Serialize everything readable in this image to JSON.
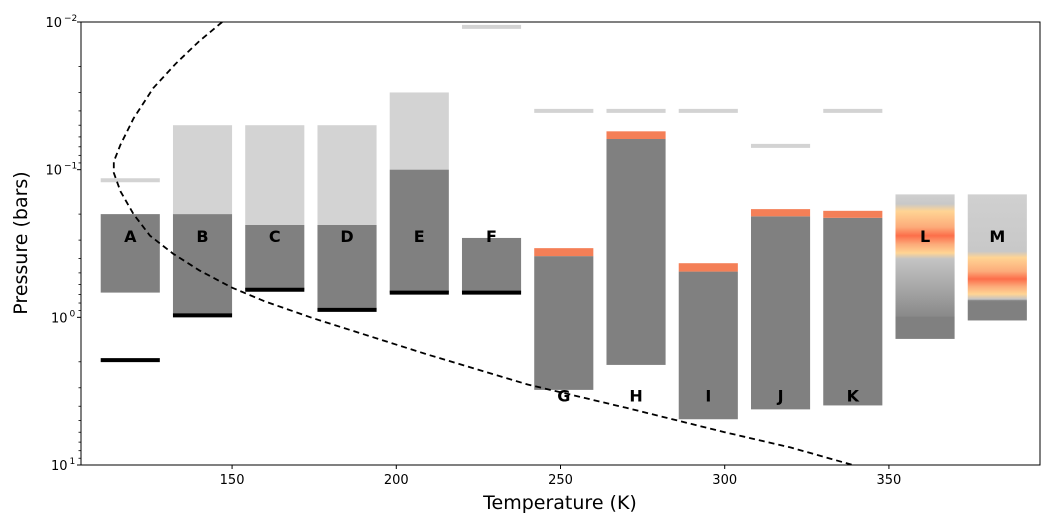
{
  "chart_data": {
    "type": "bar",
    "xlabel": "Temperature (K)",
    "ylabel": "Pressure (bars)",
    "xlim": [
      104,
      396
    ],
    "ylim": [
      10,
      0.01
    ],
    "yscale": "log",
    "x_ticks": [
      {
        "value": 150,
        "label": "150"
      },
      {
        "value": 200,
        "label": "200"
      },
      {
        "value": 250,
        "label": "250"
      },
      {
        "value": 300,
        "label": "300"
      },
      {
        "value": 350,
        "label": "350"
      }
    ],
    "y_ticks": [
      {
        "value": 0.01,
        "base": "10",
        "exp": "−2"
      },
      {
        "value": 0.1,
        "base": "10",
        "exp": "−1"
      },
      {
        "value": 1,
        "base": "10",
        "exp": "0"
      },
      {
        "value": 10,
        "base": "10",
        "exp": "1"
      }
    ],
    "colors": {
      "dark_bar": "#808080",
      "light_bar": "#d3d3d3",
      "hot_layer": "#f47f57",
      "gradient_core": "#fc6e4a",
      "gradient_edge": "#ffd494",
      "marker": "#000000",
      "curve": "#000000"
    },
    "bars": [
      {
        "label": "A",
        "x0": 110,
        "x1": 128,
        "label_p": 0.5,
        "light": null,
        "dark": [
          0.2,
          0.68
        ],
        "hot": null,
        "top_mark": 0.118,
        "bottom_mark": 1.95
      },
      {
        "label": "B",
        "x0": 132,
        "x1": 150,
        "label_p": 0.5,
        "light": [
          0.05,
          0.2
        ],
        "dark": [
          0.2,
          0.97
        ],
        "hot": null,
        "top_mark": null,
        "bottom_mark": 0.97
      },
      {
        "label": "C",
        "x0": 154,
        "x1": 172,
        "label_p": 0.5,
        "light": [
          0.05,
          0.237
        ],
        "dark": [
          0.237,
          0.65
        ],
        "hot": null,
        "top_mark": null,
        "bottom_mark": 0.65
      },
      {
        "label": "D",
        "x0": 176,
        "x1": 194,
        "label_p": 0.5,
        "light": [
          0.05,
          0.237
        ],
        "dark": [
          0.237,
          0.89
        ],
        "hot": null,
        "top_mark": null,
        "bottom_mark": 0.89
      },
      {
        "label": "E",
        "x0": 198,
        "x1": 216,
        "label_p": 0.5,
        "light": [
          0.03,
          0.1
        ],
        "dark": [
          0.1,
          0.68
        ],
        "hot": null,
        "top_mark": null,
        "bottom_mark": 0.68
      },
      {
        "label": "F",
        "x0": 220,
        "x1": 238,
        "label_p": 0.5,
        "light": null,
        "dark": [
          0.29,
          0.68
        ],
        "hot": null,
        "top_mark": 0.0108,
        "bottom_mark": 0.68
      },
      {
        "label": "G",
        "x0": 242,
        "x1": 260,
        "label_p": 0.86,
        "light": null,
        "dark": [
          0.385,
          3.1
        ],
        "hot": [
          0.34,
          0.385
        ],
        "top_mark": 0.04,
        "bottom_mark": null
      },
      {
        "label": "H",
        "x0": 264,
        "x1": 282,
        "label_p": 0.86,
        "light": null,
        "dark": [
          0.062,
          2.1
        ],
        "hot": [
          0.055,
          0.062
        ],
        "top_mark": 0.04,
        "bottom_mark": null
      },
      {
        "label": "I",
        "x0": 286,
        "x1": 304,
        "label_p": 0.86,
        "light": null,
        "dark": [
          0.49,
          4.9
        ],
        "hot": [
          0.43,
          0.49
        ],
        "top_mark": 0.04,
        "bottom_mark": null
      },
      {
        "label": "J",
        "x0": 308,
        "x1": 326,
        "label_p": 0.86,
        "light": null,
        "dark": [
          0.207,
          4.2
        ],
        "hot": [
          0.185,
          0.207
        ],
        "top_mark": 0.069,
        "bottom_mark": null
      },
      {
        "label": "K",
        "x0": 330,
        "x1": 348,
        "label_p": 0.86,
        "light": null,
        "dark": [
          0.212,
          3.95
        ],
        "hot": [
          0.19,
          0.212
        ],
        "top_mark": 0.04,
        "bottom_mark": null
      },
      {
        "label": "L",
        "x0": 352,
        "x1": 370,
        "label_p": 0.5,
        "gradient": {
          "top": 0.147,
          "bottom": 1.4,
          "glow_center": 0.28,
          "dark_below": 1.0
        }
      },
      {
        "label": "M",
        "x0": 374,
        "x1": 392,
        "label_p": 0.5,
        "gradient": {
          "top": 0.147,
          "bottom": 1.05,
          "glow_center": 0.55,
          "dark_below": 0.69
        }
      }
    ],
    "curve": {
      "style": "dashed",
      "points": [
        [
          147,
          0.01
        ],
        [
          140,
          0.0135
        ],
        [
          133,
          0.019
        ],
        [
          126,
          0.028
        ],
        [
          120,
          0.045
        ],
        [
          116,
          0.068
        ],
        [
          114,
          0.088
        ],
        [
          114,
          0.105
        ],
        [
          116,
          0.14
        ],
        [
          120,
          0.2
        ],
        [
          125,
          0.28
        ],
        [
          132,
          0.37
        ],
        [
          140,
          0.48
        ],
        [
          150,
          0.63
        ],
        [
          160,
          0.78
        ],
        [
          175,
          1.02
        ],
        [
          190,
          1.3
        ],
        [
          210,
          1.8
        ],
        [
          240,
          2.85
        ],
        [
          270,
          4.1
        ],
        [
          300,
          6.0
        ],
        [
          320,
          7.6
        ],
        [
          339,
          10.0
        ]
      ]
    }
  }
}
